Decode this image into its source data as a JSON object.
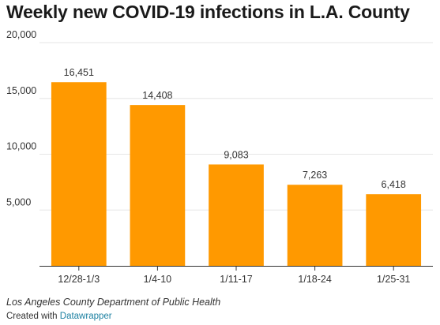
{
  "chart_data": {
    "type": "bar",
    "title": "Weekly new COVID-19 infections in L.A. County",
    "categories": [
      "12/28-1/3",
      "1/4-10",
      "1/11-17",
      "1/18-24",
      "1/25-31"
    ],
    "values": [
      16451,
      14408,
      9083,
      7263,
      6418
    ],
    "value_labels": [
      "16,451",
      "14,408",
      "9,083",
      "7,263",
      "6,418"
    ],
    "yticks": [
      5000,
      10000,
      15000,
      20000
    ],
    "ytick_labels": [
      "5,000",
      "10,000",
      "15,000",
      "20,000"
    ],
    "ylim": [
      0,
      20000
    ],
    "bar_color": "#ff9900",
    "grid": true,
    "xlabel": "",
    "ylabel": ""
  },
  "footer": {
    "source": "Los Angeles County Department of Public Health",
    "credit_prefix": "Created with ",
    "credit_link": "Datawrapper"
  }
}
